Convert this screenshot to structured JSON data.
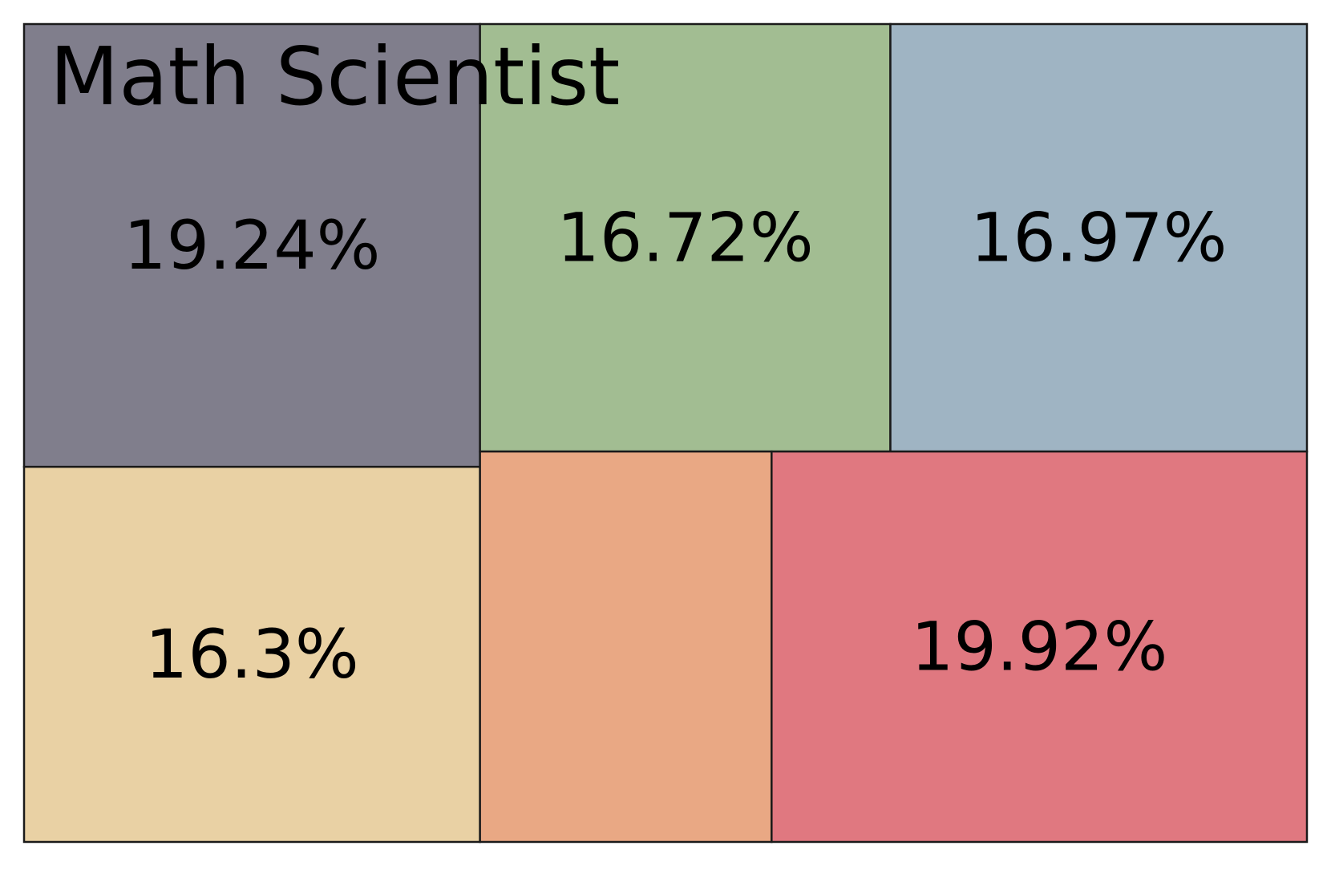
{
  "chart_data": {
    "type": "treemap",
    "title": "Math Scientist",
    "tiles": [
      {
        "value": 19.24,
        "label": "19.24%",
        "color": "#807e8c"
      },
      {
        "value": 16.3,
        "label": "16.3%",
        "color": "#e9d1a4"
      },
      {
        "value": 16.72,
        "label": "16.72%",
        "color": "#a2bd92"
      },
      {
        "value": 16.97,
        "label": "16.97%",
        "color": "#9fb4c3"
      },
      {
        "value": 10.85,
        "label": "",
        "color": "#e9a884"
      },
      {
        "value": 19.92,
        "label": "19.92%",
        "color": "#e07880"
      }
    ]
  }
}
